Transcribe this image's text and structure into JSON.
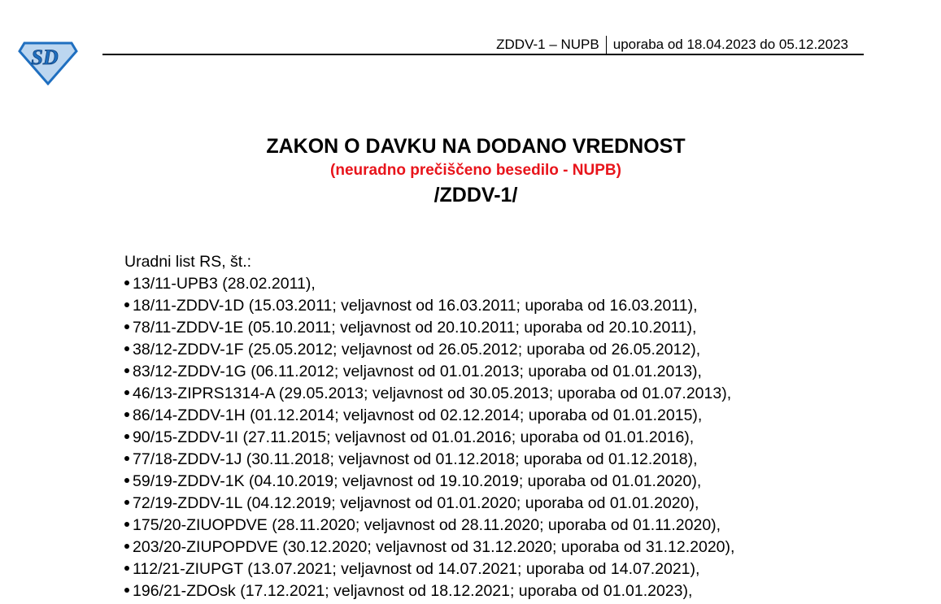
{
  "header": {
    "code": "ZDDV-1 – NUPB",
    "usage": "uporaba od 18.04.2023 do 05.12.2023"
  },
  "logo": {
    "text": "SD"
  },
  "title": "ZAKON O DAVKU NA DODANO VREDNOST",
  "subtitle": "(neuradno prečiščeno besedilo - NUPB)",
  "abbreviation": "/ZDDV-1/",
  "gazette_label": "Uradni list RS, št.:",
  "gazette_items": [
    "13/11-UPB3 (28.02.2011),",
    "18/11-ZDDV-1D (15.03.2011; veljavnost od 16.03.2011; uporaba od 16.03.2011),",
    "78/11-ZDDV-1E (05.10.2011; veljavnost od 20.10.2011; uporaba od 20.10.2011),",
    "38/12-ZDDV-1F (25.05.2012; veljavnost od 26.05.2012; uporaba od 26.05.2012),",
    "83/12-ZDDV-1G (06.11.2012; veljavnost od 01.01.2013; uporaba od 01.01.2013),",
    "46/13-ZIPRS1314-A (29.05.2013; veljavnost od 30.05.2013; uporaba od 01.07.2013),",
    "86/14-ZDDV-1H (01.12.2014; veljavnost od 02.12.2014; uporaba od 01.01.2015),",
    "90/15-ZDDV-1I (27.11.2015; veljavnost od 01.01.2016; uporaba od 01.01.2016),",
    "77/18-ZDDV-1J (30.11.2018; veljavnost od 01.12.2018; uporaba od 01.12.2018),",
    "59/19-ZDDV-1K (04.10.2019; veljavnost od 19.10.2019; uporaba od 01.01.2020),",
    "72/19-ZDDV-1L (04.12.2019; veljavnost od 01.01.2020; uporaba od 01.01.2020),",
    "175/20-ZIUOPDVE (28.11.2020; veljavnost od 28.11.2020; uporaba od 01.11.2020),",
    "203/20-ZIUPOPDVE (30.12.2020; veljavnost od 31.12.2020; uporaba od 31.12.2020),",
    "112/21-ZIUPGT (13.07.2021; veljavnost od 14.07.2021; uporaba od 14.07.2021),",
    "196/21-ZDOsk (17.12.2021; veljavnost od 18.12.2021; uporaba od 01.01.2023),"
  ],
  "colors": {
    "subtitle": "#e8141b",
    "logo_fill": "#bcd6f0",
    "logo_stroke": "#1f6fc0"
  }
}
